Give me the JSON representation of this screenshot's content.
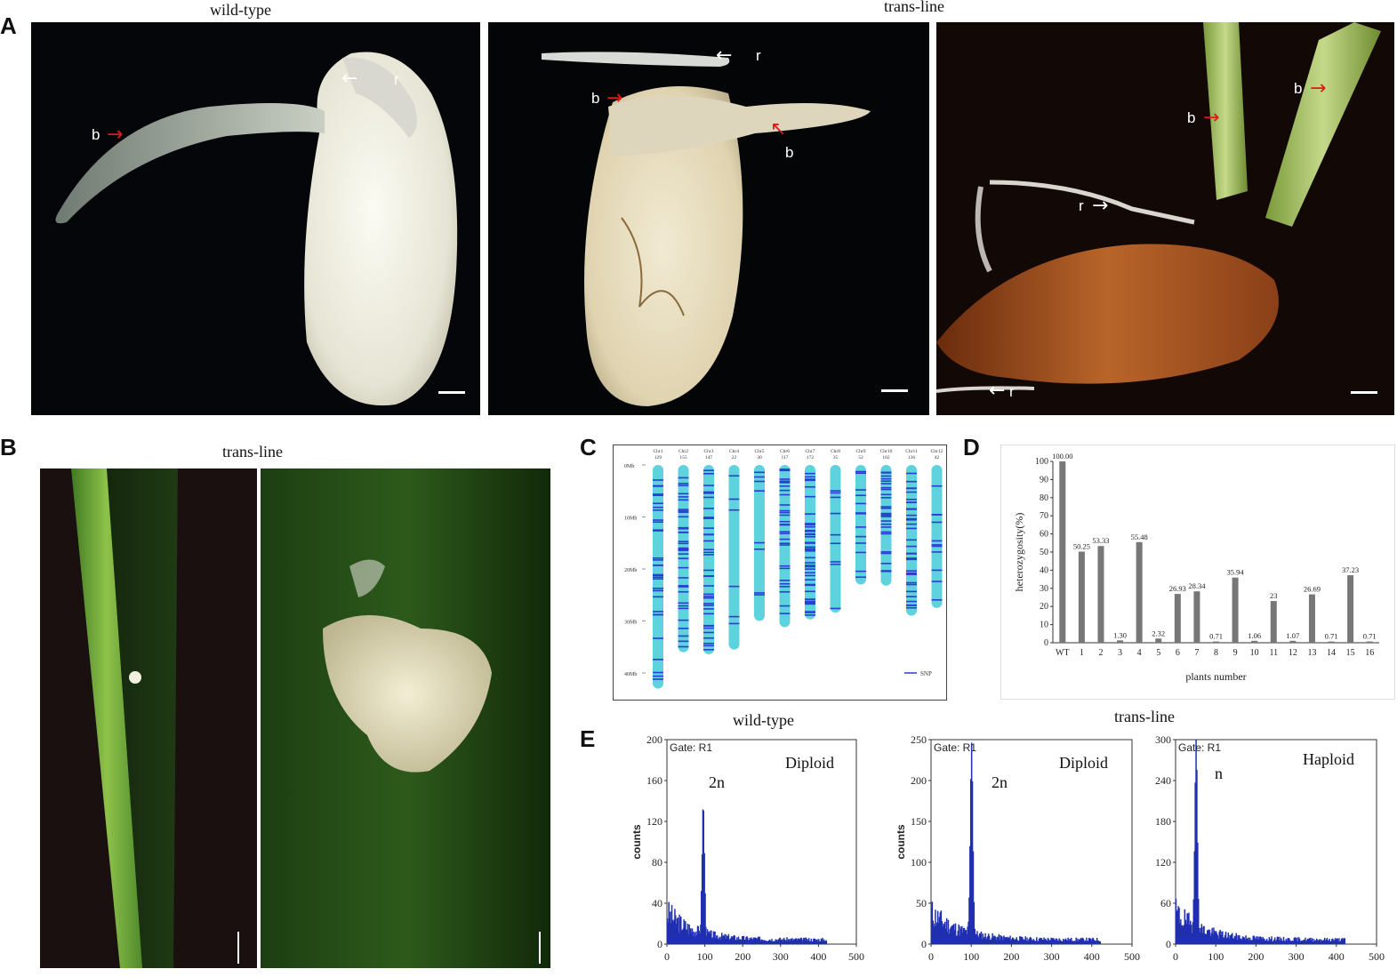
{
  "panelA": {
    "label": "A",
    "title_wt": "wild-type",
    "title_trans": "trans-line",
    "arrows": {
      "b": "b",
      "r": "r"
    }
  },
  "panelB": {
    "label": "B",
    "title": "trans-line"
  },
  "panelC": {
    "label": "C",
    "legend": "SNP",
    "y_ticks": [
      "0Mb",
      "10Mb",
      "20Mb",
      "30Mb",
      "40Mb"
    ],
    "chromosomes": [
      {
        "name": "Chr1",
        "count": "129",
        "length": 43
      },
      {
        "name": "Chr2",
        "count": "155",
        "length": 36
      },
      {
        "name": "Chr3",
        "count": "147",
        "length": 36.4
      },
      {
        "name": "Chr4",
        "count": "22",
        "length": 35.5
      },
      {
        "name": "Chr5",
        "count": "30",
        "length": 30
      },
      {
        "name": "Chr6",
        "count": "117",
        "length": 31.2
      },
      {
        "name": "Chr7",
        "count": "172",
        "length": 29.7
      },
      {
        "name": "Chr8",
        "count": "35",
        "length": 28.4
      },
      {
        "name": "Chr9",
        "count": "52",
        "length": 23
      },
      {
        "name": "Chr10",
        "count": "102",
        "length": 23.2
      },
      {
        "name": "Chr11",
        "count": "136",
        "length": 29
      },
      {
        "name": "Chr12",
        "count": "42",
        "length": 27.5
      }
    ]
  },
  "chart_data": [
    {
      "type": "bar",
      "panel": "D",
      "xlabel": "plants number",
      "ylabel": "heterozygosity(%)",
      "ylim": [
        0,
        100
      ],
      "yticks": [
        0,
        10,
        20,
        30,
        40,
        50,
        60,
        70,
        80,
        90,
        100
      ],
      "categories": [
        "WT",
        "1",
        "2",
        "3",
        "4",
        "5",
        "6",
        "7",
        "8",
        "9",
        "10",
        "11",
        "12",
        "13",
        "14",
        "15",
        "16"
      ],
      "values": [
        100.0,
        50.25,
        53.33,
        1.3,
        55.48,
        2.32,
        26.93,
        28.34,
        0.71,
        35.94,
        1.06,
        23,
        1.07,
        26.69,
        0.71,
        37.23,
        0.71
      ],
      "data_labels": [
        "100.00",
        "50.25",
        "53.33",
        "1.30",
        "55.48",
        "2.32",
        "26.93",
        "28.34",
        "0.71",
        "35.94",
        "1.06",
        "23",
        "1.07",
        "26.69",
        "0.71",
        "37.23",
        "0.71"
      ]
    },
    {
      "type": "area",
      "panel": "E-wild-type",
      "title": "wild-type",
      "gate": "Gate: R1",
      "annotation": "Diploid",
      "peak_label": "2n",
      "ylabel": "counts",
      "xlim": [
        0,
        500
      ],
      "ylim": [
        0,
        200
      ],
      "xticks": [
        0,
        100,
        200,
        300,
        400,
        500
      ],
      "yticks": [
        0,
        40,
        80,
        120,
        160,
        200
      ],
      "peak_x": 95,
      "peak_y": 125
    },
    {
      "type": "area",
      "panel": "E-trans-diploid",
      "title": "trans-line",
      "gate": "Gate: R1",
      "annotation": "Diploid",
      "peak_label": "2n",
      "ylabel": "counts",
      "xlim": [
        0,
        500
      ],
      "ylim": [
        0,
        250
      ],
      "xticks": [
        0,
        100,
        200,
        300,
        400,
        500
      ],
      "yticks": [
        0,
        50,
        100,
        150,
        200,
        250
      ],
      "peak_x": 100,
      "peak_y": 230
    },
    {
      "type": "area",
      "panel": "E-trans-haploid",
      "gate": "Gate: R1",
      "annotation": "Haploid",
      "peak_label": "n",
      "xlim": [
        0,
        500
      ],
      "ylim": [
        0,
        300
      ],
      "xticks": [
        0,
        100,
        200,
        300,
        400,
        500
      ],
      "yticks": [
        0,
        60,
        120,
        180,
        240,
        300
      ],
      "peak_x": 50,
      "peak_y": 270
    }
  ],
  "panelE": {
    "label": "E"
  },
  "colors": {
    "bar": "#777777",
    "hist": "#1f2fb0",
    "chrom": "#5fd3dd",
    "snp": "#2a3fd0",
    "arrow_red": "#e01818"
  }
}
